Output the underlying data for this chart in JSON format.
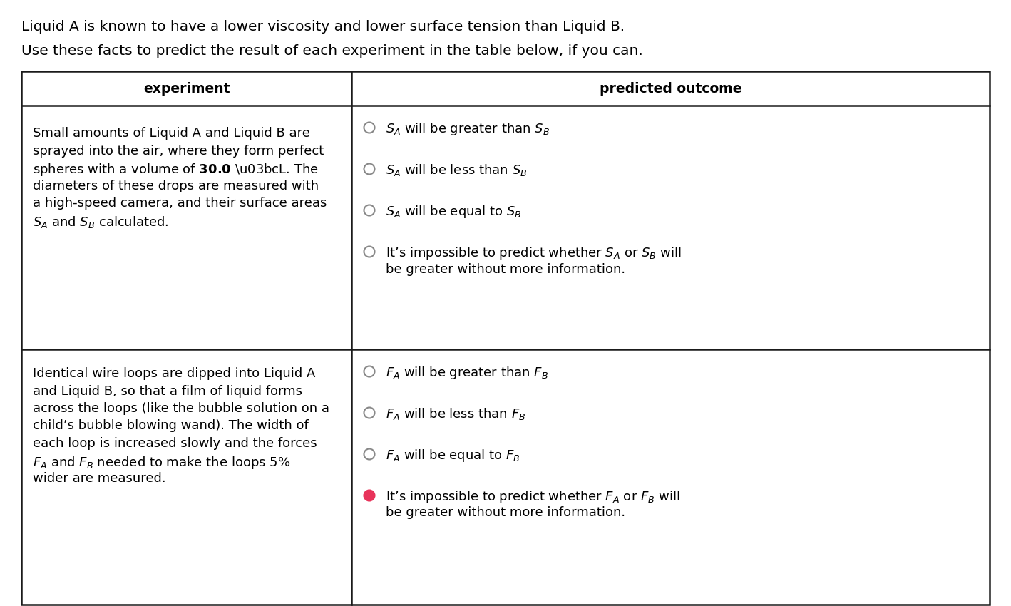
{
  "title_line1": "Liquid A is known to have a lower viscosity and lower surface tension than Liquid B.",
  "title_line2": "Use these facts to predict the result of each experiment in the table below, if you can.",
  "col1_header": "experiment",
  "col2_header": "predicted outcome",
  "row1_exp_lines": [
    "Small amounts of Liquid A and Liquid B are",
    "sprayed into the air, where they form perfect",
    "spheres with a volume of $\\mathbf{30.0}$ μL. The",
    "diameters of these drops are measured with",
    "a high-speed camera, and their surface areas",
    "$S_A$ and $S_B$ calculated."
  ],
  "row1_options": [
    {
      "label": "$S_A$ will be greater than $S_B$",
      "selected": false
    },
    {
      "label": "$S_A$ will be less than $S_B$",
      "selected": false
    },
    {
      "label": "$S_A$ will be equal to $S_B$",
      "selected": false
    },
    {
      "label": "It’s impossible to predict whether $S_A$ or $S_B$ will\nbe greater without more information.",
      "selected": false
    }
  ],
  "row2_exp_lines": [
    "Identical wire loops are dipped into Liquid A",
    "and Liquid B, so that a film of liquid forms",
    "across the loops (like the bubble solution on a",
    "child’s bubble blowing wand). The width of",
    "each loop is increased slowly and the forces",
    "$F_A$ and $F_B$ needed to make the loops $5\\%$",
    "wider are measured."
  ],
  "row2_options": [
    {
      "label": "$F_A$ will be greater than $F_B$",
      "selected": false
    },
    {
      "label": "$F_A$ will be less than $F_B$",
      "selected": false
    },
    {
      "label": "$F_A$ will be equal to $F_B$",
      "selected": false
    },
    {
      "label": "It’s impossible to predict whether $F_A$ or $F_B$ will\nbe greater without more information.",
      "selected": true
    }
  ],
  "bg_color": "#ffffff",
  "text_color": "#000000",
  "border_color": "#1a1a1a",
  "selected_fill": "#e8335a",
  "unselected_stroke": "#888888",
  "font_size_title": 14.5,
  "font_size_body": 13.0,
  "font_size_header": 13.5
}
